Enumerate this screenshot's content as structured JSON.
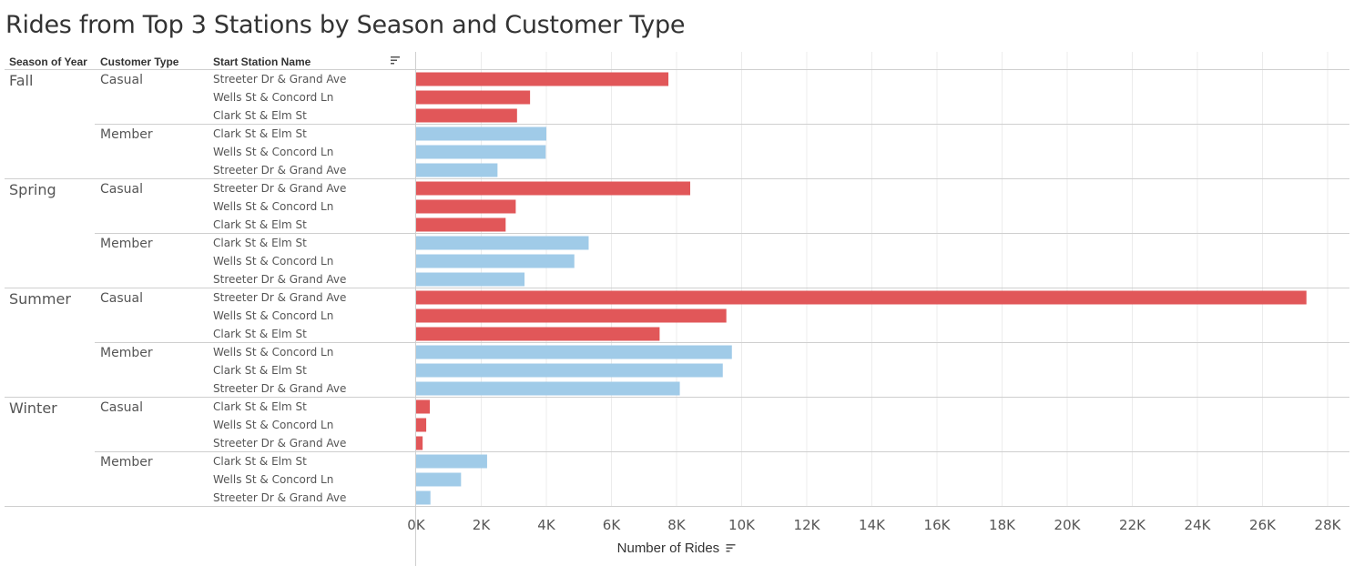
{
  "colors": {
    "casual": "#E15759",
    "member": "#A0CBE8"
  },
  "chart_data": {
    "type": "bar",
    "orientation": "horizontal",
    "title": "Rides from Top 3 Stations by Season and Customer Type",
    "headers": [
      "Season of Year",
      "Customer Type",
      "Start Station Name"
    ],
    "xlabel": "Number of Rides",
    "xlim": [
      0,
      28000
    ],
    "xticks": [
      {
        "value": 0,
        "label": "0K"
      },
      {
        "value": 2000,
        "label": "2K"
      },
      {
        "value": 4000,
        "label": "4K"
      },
      {
        "value": 6000,
        "label": "6K"
      },
      {
        "value": 8000,
        "label": "8K"
      },
      {
        "value": 10000,
        "label": "10K"
      },
      {
        "value": 12000,
        "label": "12K"
      },
      {
        "value": 14000,
        "label": "14K"
      },
      {
        "value": 16000,
        "label": "16K"
      },
      {
        "value": 18000,
        "label": "18K"
      },
      {
        "value": 20000,
        "label": "20K"
      },
      {
        "value": 22000,
        "label": "22K"
      },
      {
        "value": 24000,
        "label": "24K"
      },
      {
        "value": 26000,
        "label": "26K"
      },
      {
        "value": 28000,
        "label": "28K"
      }
    ],
    "grid": true,
    "groups": [
      {
        "season": "Fall",
        "customer_types": [
          {
            "type": "Casual",
            "stations": [
              {
                "name": "Streeter Dr & Grand Ave",
                "value": 7750
              },
              {
                "name": "Wells St & Concord Ln",
                "value": 3500
              },
              {
                "name": "Clark St & Elm St",
                "value": 3100
              }
            ]
          },
          {
            "type": "Member",
            "stations": [
              {
                "name": "Clark St & Elm St",
                "value": 4000
              },
              {
                "name": "Wells St & Concord Ln",
                "value": 3980
              },
              {
                "name": "Streeter Dr & Grand Ave",
                "value": 2500
              }
            ]
          }
        ]
      },
      {
        "season": "Spring",
        "customer_types": [
          {
            "type": "Casual",
            "stations": [
              {
                "name": "Streeter Dr & Grand Ave",
                "value": 8420
              },
              {
                "name": "Wells St & Concord Ln",
                "value": 3060
              },
              {
                "name": "Clark St & Elm St",
                "value": 2750
              }
            ]
          },
          {
            "type": "Member",
            "stations": [
              {
                "name": "Clark St & Elm St",
                "value": 5300
              },
              {
                "name": "Wells St & Concord Ln",
                "value": 4860
              },
              {
                "name": "Streeter Dr & Grand Ave",
                "value": 3330
              }
            ]
          }
        ]
      },
      {
        "season": "Summer",
        "customer_types": [
          {
            "type": "Casual",
            "stations": [
              {
                "name": "Streeter Dr & Grand Ave",
                "value": 27350
              },
              {
                "name": "Wells St & Concord Ln",
                "value": 9530
              },
              {
                "name": "Clark St & Elm St",
                "value": 7480
              }
            ]
          },
          {
            "type": "Member",
            "stations": [
              {
                "name": "Wells St & Concord Ln",
                "value": 9700
              },
              {
                "name": "Clark St & Elm St",
                "value": 9420
              },
              {
                "name": "Streeter Dr & Grand Ave",
                "value": 8100
              }
            ]
          }
        ]
      },
      {
        "season": "Winter",
        "customer_types": [
          {
            "type": "Casual",
            "stations": [
              {
                "name": "Clark St & Elm St",
                "value": 420
              },
              {
                "name": "Wells St & Concord Ln",
                "value": 310
              },
              {
                "name": "Streeter Dr & Grand Ave",
                "value": 200
              }
            ]
          },
          {
            "type": "Member",
            "stations": [
              {
                "name": "Clark St & Elm St",
                "value": 2180
              },
              {
                "name": "Wells St & Concord Ln",
                "value": 1380
              },
              {
                "name": "Streeter Dr & Grand Ave",
                "value": 440
              }
            ]
          }
        ]
      }
    ]
  }
}
